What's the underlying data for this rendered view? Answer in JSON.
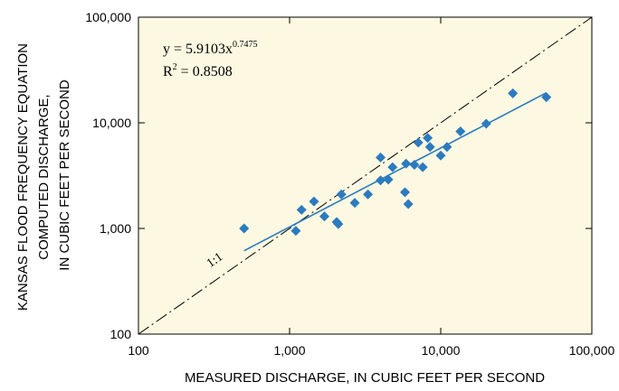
{
  "chart_data": {
    "type": "scatter",
    "title": "",
    "xlabel": "MEASURED DISCHARGE, IN CUBIC FEET PER SECOND",
    "ylabel": [
      "KANSAS FLOOD FREQUENCY EQUATION",
      "COMPUTED DISCHARGE,",
      "IN CUBIC FEET PER SECOND"
    ],
    "x_scale": "log",
    "y_scale": "log",
    "xlim": [
      100,
      100000
    ],
    "ylim": [
      100,
      100000
    ],
    "xticks": [
      100,
      1000,
      10000,
      100000
    ],
    "yticks": [
      100,
      1000,
      10000,
      100000
    ],
    "xtick_labels": [
      "100",
      "1,000",
      "10,000",
      "100,000"
    ],
    "ytick_labels": [
      "100",
      "1,000",
      "10,000",
      "100,000"
    ],
    "grid": false,
    "points": [
      {
        "x": 500,
        "y": 1000
      },
      {
        "x": 1100,
        "y": 950
      },
      {
        "x": 1200,
        "y": 1500
      },
      {
        "x": 1450,
        "y": 1800
      },
      {
        "x": 1700,
        "y": 1300
      },
      {
        "x": 2050,
        "y": 1150
      },
      {
        "x": 2100,
        "y": 1100
      },
      {
        "x": 2200,
        "y": 2100
      },
      {
        "x": 2700,
        "y": 1750
      },
      {
        "x": 3300,
        "y": 2100
      },
      {
        "x": 4000,
        "y": 2850
      },
      {
        "x": 4000,
        "y": 4700
      },
      {
        "x": 4500,
        "y": 2900
      },
      {
        "x": 4800,
        "y": 3800
      },
      {
        "x": 5800,
        "y": 2200
      },
      {
        "x": 5900,
        "y": 4100
      },
      {
        "x": 6100,
        "y": 1700
      },
      {
        "x": 6700,
        "y": 4000
      },
      {
        "x": 7100,
        "y": 6500
      },
      {
        "x": 7600,
        "y": 3800
      },
      {
        "x": 8200,
        "y": 7200
      },
      {
        "x": 8500,
        "y": 5900
      },
      {
        "x": 10000,
        "y": 4900
      },
      {
        "x": 11000,
        "y": 5900
      },
      {
        "x": 13500,
        "y": 8300
      },
      {
        "x": 20000,
        "y": 9800
      },
      {
        "x": 30000,
        "y": 19000
      },
      {
        "x": 50000,
        "y": 17500
      }
    ],
    "marker": "diamond",
    "point_color": "#2b7bbf",
    "fit_line": {
      "coefficient": 5.9103,
      "exponent": 0.7475,
      "x_range": [
        500,
        50000
      ],
      "color": "#2b7bbf"
    },
    "reference_line": {
      "label": "1:1",
      "style": "dash-dot"
    },
    "annotations": {
      "equation_main": "y = 5.9103x",
      "equation_exponent": "0.7475",
      "r2_label": "R",
      "r2_superscript": "2",
      "r2_value": " = 0.8508"
    },
    "background_color": "#fdf8e1",
    "frame_color": "#000000"
  }
}
